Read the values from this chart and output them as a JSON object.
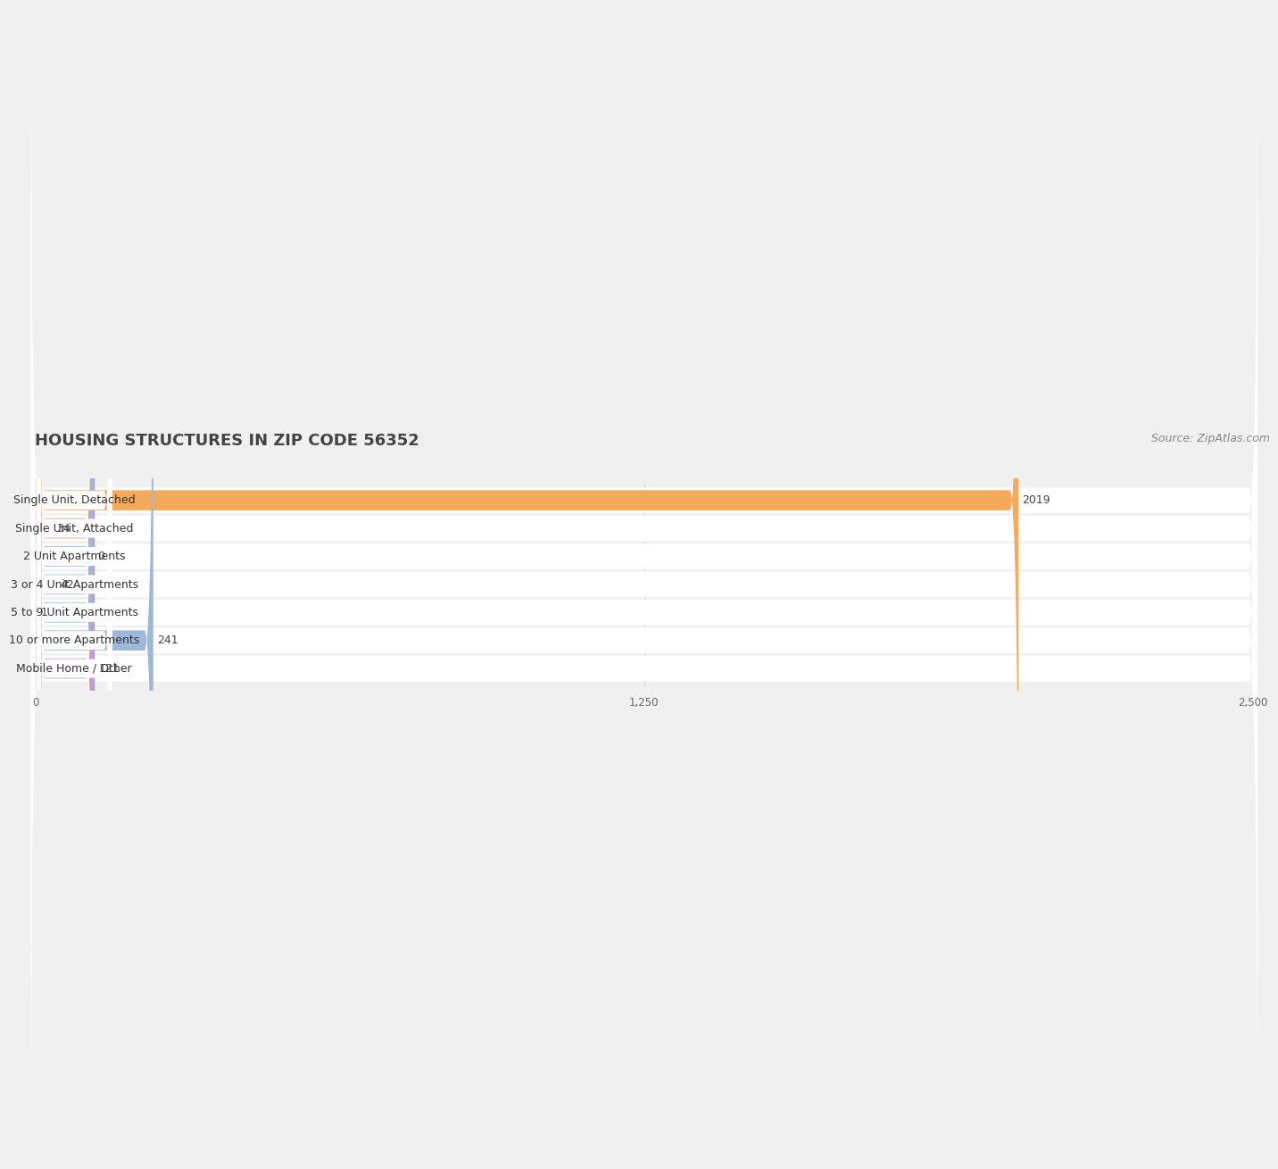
{
  "title": "HOUSING STRUCTURES IN ZIP CODE 56352",
  "source": "Source: ZipAtlas.com",
  "categories": [
    "Single Unit, Detached",
    "Single Unit, Attached",
    "2 Unit Apartments",
    "3 or 4 Unit Apartments",
    "5 to 9 Unit Apartments",
    "10 or more Apartments",
    "Mobile Home / Other"
  ],
  "values": [
    2019,
    34,
    0,
    42,
    1,
    241,
    121
  ],
  "bar_colors": [
    "#F5A95A",
    "#F09090",
    "#9DB8D9",
    "#9DB8D9",
    "#9DB8D9",
    "#9DB8D9",
    "#C0A0C8"
  ],
  "xlim_max": 2500,
  "xticks": [
    0,
    1250,
    2500
  ],
  "xtick_labels": [
    "0",
    "1,250",
    "2,500"
  ],
  "background_color": "#f0f0f0",
  "row_bg_color": "#ffffff",
  "title_fontsize": 13,
  "source_fontsize": 9,
  "label_fontsize": 9,
  "value_fontsize": 9
}
